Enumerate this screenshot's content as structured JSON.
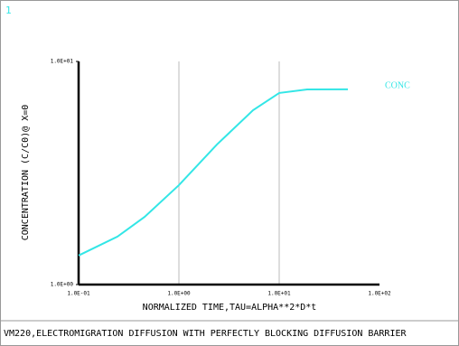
{
  "chart_data": {
    "type": "line",
    "panel_label": "1",
    "title": "VM220,ELECTROMIGRATION DIFFUSION WITH PERFECTLY BLOCKING DIFFUSION BARRIER",
    "x_label": "NORMALIZED TIME,TAU=ALPHA**2*D*t",
    "y_label": "CONCENTRATION (C/C0)@ X=0",
    "x_scale": "log",
    "y_scale": "log",
    "grid": "x",
    "x": [
      0.1,
      0.244,
      0.455,
      1,
      2.39,
      5.48,
      10,
      19,
      48.4
    ],
    "series": [
      {
        "name": "CONC",
        "color": "#33e6e6",
        "values": [
          1.35,
          1.64,
          2.01,
          2.79,
          4.24,
          6.04,
          7.22,
          7.49,
          7.5
        ]
      }
    ],
    "xlim": [
      0.1,
      100
    ],
    "ylim": [
      1,
      10
    ],
    "xticks": [
      {
        "value": 0.1,
        "label": "1.0E-01"
      },
      {
        "value": 1,
        "label": "1.0E+00"
      },
      {
        "value": 10,
        "label": "1.0E+01"
      },
      {
        "value": 100,
        "label": "1.0E+02"
      }
    ],
    "yticks": [
      {
        "value": 1,
        "label": "1.0E+00"
      },
      {
        "value": 10,
        "label": "1.0E+01"
      }
    ]
  }
}
